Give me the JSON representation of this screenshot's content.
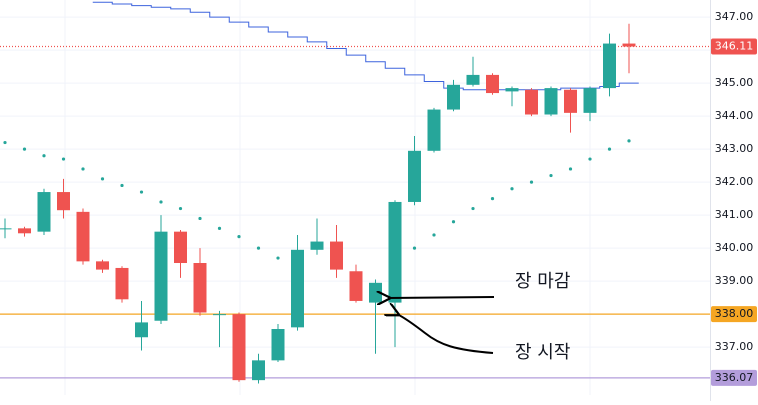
{
  "chart_data": {
    "type": "candlestick",
    "ylim": [
      335.55,
      347.52
    ],
    "yticks": [
      {
        "value": 337,
        "label": "337.00"
      },
      {
        "value": 338,
        "label": "338.00"
      },
      {
        "value": 339,
        "label": "339.00"
      },
      {
        "value": 340,
        "label": "340.00"
      },
      {
        "value": 341,
        "label": "341.00"
      },
      {
        "value": 342,
        "label": "342.00"
      },
      {
        "value": 343,
        "label": "343.00"
      },
      {
        "value": 344,
        "label": "344.00"
      },
      {
        "value": 345,
        "label": "345.00"
      },
      {
        "value": 346,
        "label": "346.00"
      },
      {
        "value": 347,
        "label": "347.00"
      }
    ],
    "grid": true,
    "up_color": "#26a69a",
    "down_color": "#ef5350",
    "open": [
      340.6,
      340.6,
      340.5,
      341.7,
      341.1,
      339.6,
      339.4,
      337.3,
      337.8,
      340.5,
      339.55,
      338.0,
      338.0,
      336.0,
      336.6,
      337.6,
      339.95,
      340.2,
      339.3,
      338.35,
      338.35,
      341.4,
      342.95,
      344.2,
      344.95,
      345.25,
      344.75,
      344.8,
      344.05,
      344.8,
      344.1,
      344.85,
      346.2
    ],
    "high": [
      340.9,
      340.65,
      341.8,
      342.1,
      341.2,
      339.65,
      339.45,
      338.4,
      341.0,
      340.55,
      340.0,
      338.1,
      338.05,
      336.8,
      337.7,
      340.4,
      340.9,
      340.7,
      339.5,
      339.05,
      341.45,
      343.4,
      344.25,
      345.1,
      345.8,
      345.3,
      344.9,
      344.85,
      344.9,
      344.85,
      344.9,
      346.5,
      346.8
    ],
    "low": [
      340.3,
      340.35,
      340.4,
      340.9,
      339.5,
      339.25,
      338.35,
      336.9,
      337.7,
      339.1,
      337.95,
      337.0,
      335.95,
      335.9,
      336.55,
      337.5,
      339.8,
      339.1,
      338.35,
      336.8,
      337.0,
      341.3,
      342.9,
      344.15,
      344.9,
      344.65,
      344.3,
      344.0,
      344.0,
      343.5,
      343.85,
      344.6,
      345.3
    ],
    "close": [
      340.6,
      340.45,
      341.7,
      341.15,
      339.6,
      339.35,
      338.45,
      337.75,
      340.5,
      339.55,
      338.05,
      338.0,
      336.0,
      336.6,
      337.55,
      339.95,
      340.2,
      339.35,
      338.4,
      338.95,
      341.4,
      342.95,
      344.2,
      344.95,
      345.25,
      344.7,
      344.85,
      344.05,
      344.85,
      344.1,
      344.85,
      346.2,
      346.11
    ],
    "overlays": [
      {
        "kind": "step",
        "color": "#3d63dd",
        "values": [
          null,
          null,
          null,
          null,
          null,
          347.45,
          347.4,
          347.35,
          347.3,
          347.25,
          347.15,
          347.0,
          346.85,
          346.7,
          346.55,
          346.4,
          346.25,
          346.05,
          345.85,
          345.65,
          345.45,
          345.25,
          345.05,
          344.85,
          344.8,
          344.8,
          344.8,
          344.8,
          344.8,
          344.85,
          344.85,
          344.9,
          345.0
        ]
      },
      {
        "kind": "dots",
        "color": "#26a69a",
        "values": [
          343.2,
          343.0,
          342.8,
          342.7,
          342.4,
          342.1,
          341.9,
          341.7,
          341.4,
          341.2,
          340.9,
          340.6,
          340.35,
          340.0,
          339.7,
          null,
          null,
          null,
          null,
          null,
          null,
          340.0,
          340.4,
          340.8,
          341.2,
          341.5,
          341.8,
          342.0,
          342.2,
          342.4,
          342.7,
          343.0,
          343.25
        ]
      }
    ],
    "price_lines": [
      {
        "value": 346.11,
        "label": "346.11",
        "color": "#ef5350",
        "text_color": "#ffffff",
        "style": "dotted"
      },
      {
        "value": 338.0,
        "label": "338.00",
        "color": "#f5a623",
        "text_color": "#131722",
        "style": "solid"
      },
      {
        "value": 336.07,
        "label": "336.07",
        "color": "#b39ddb",
        "text_color": "#131722",
        "style": "solid"
      }
    ],
    "annotations": [
      "장 마감",
      "장 시작"
    ]
  }
}
